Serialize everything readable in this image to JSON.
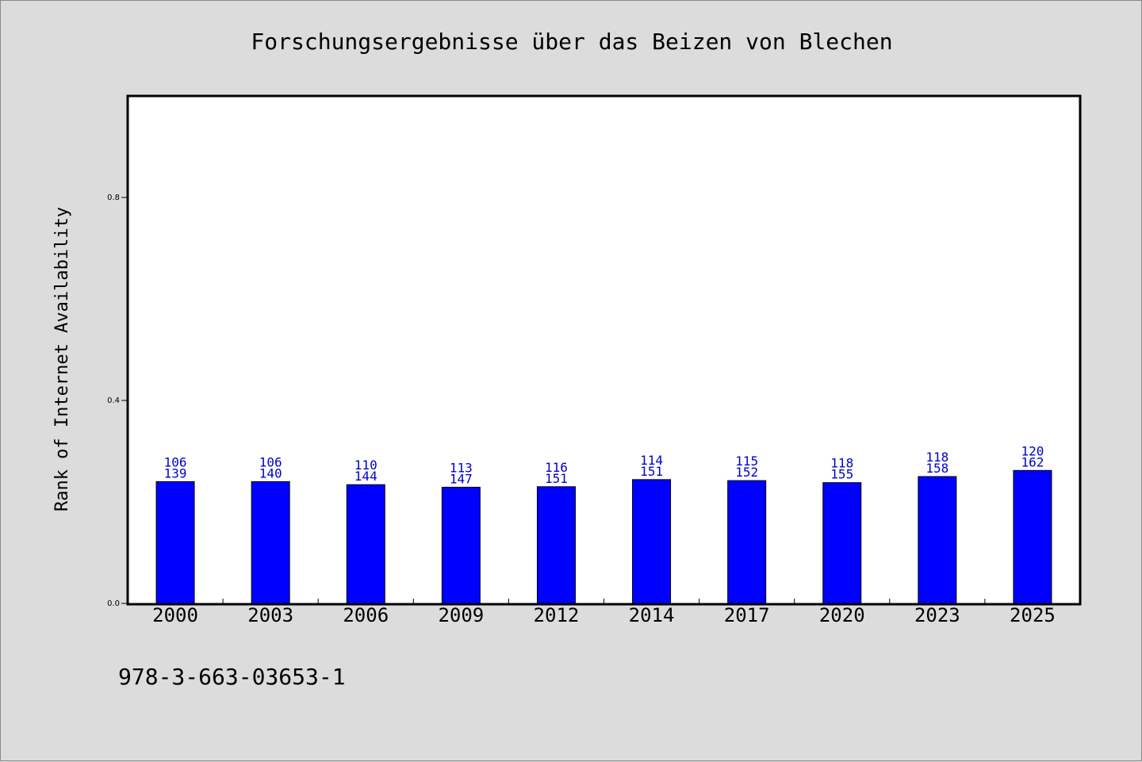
{
  "chart_data": {
    "type": "bar",
    "title": "Forschungsergebnisse über das Beizen von Blechen",
    "xlabel": "",
    "ylabel": "Rank of Internet Availability",
    "ylim": [
      0,
      1.0
    ],
    "yticks": [
      "0.0",
      "0.4",
      "0.8"
    ],
    "ytick_values": [
      0.0,
      0.4,
      0.8
    ],
    "categories": [
      "2000",
      "2003",
      "2006",
      "2009",
      "2012",
      "2014",
      "2017",
      "2020",
      "2023",
      "2025"
    ],
    "values": [
      0.24,
      0.24,
      0.234,
      0.229,
      0.23,
      0.244,
      0.242,
      0.238,
      0.25,
      0.262
    ],
    "labels_top": [
      "106",
      "106",
      "110",
      "113",
      "116",
      "114",
      "115",
      "118",
      "118",
      "120"
    ],
    "labels_bottom": [
      "139",
      "140",
      "144",
      "147",
      "151",
      "151",
      "152",
      "155",
      "158",
      "162"
    ],
    "bar_color": "#0000ff",
    "label_color": "#0000cc",
    "grid": false,
    "legend": "none"
  },
  "footnote": "978-3-663-03653-1",
  "colors": {
    "background": "#dcdcdc",
    "plot_background": "#ffffff",
    "axis": "#000000"
  }
}
